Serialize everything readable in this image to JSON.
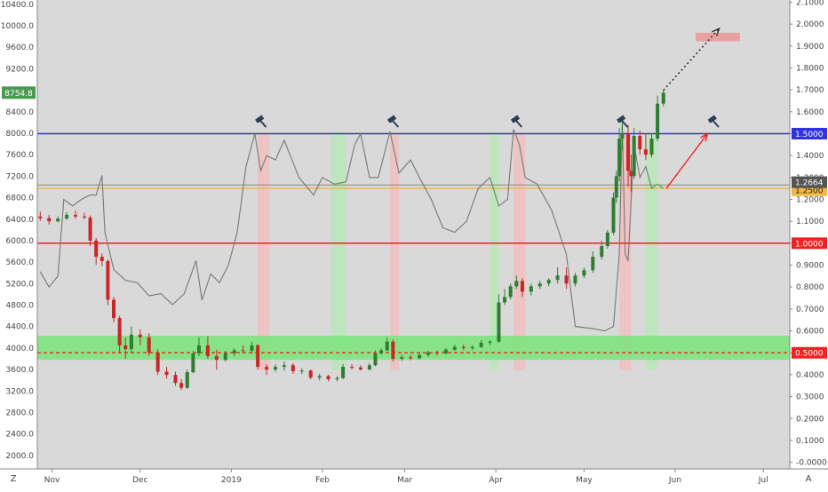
{
  "chart_data": {
    "type": "candlestick",
    "title": "",
    "xlabel": "",
    "ylabel": "",
    "price_axis_left": {
      "ticks": [
        "10400.0",
        "10000.0",
        "9600.0",
        "9200.0",
        "8800.0",
        "8400.0",
        "8000.0",
        "7600.0",
        "7200.0",
        "6800.0",
        "6400.0",
        "6000.0",
        "5600.0",
        "5200.0",
        "4800.0",
        "4400.0",
        "4000.0",
        "3600.0",
        "3200.0",
        "2800.0",
        "2400.0",
        "2000.0"
      ],
      "ylim": [
        1750,
        10480
      ]
    },
    "ratio_axis_right": {
      "ticks": [
        "2.1000",
        "2.0000",
        "1.9000",
        "1.8000",
        "1.7000",
        "1.6000",
        "1.5000",
        "1.4000",
        "1.3000",
        "1.2000",
        "1.1000",
        "1.0000",
        "0.9000",
        "0.8000",
        "0.7000",
        "0.6000",
        "0.5000",
        "0.4000",
        "0.3000",
        "0.2000",
        "0.1000",
        "-0.0000"
      ],
      "ylim": [
        -0.03,
        2.11
      ]
    },
    "x_labels": [
      "Nov",
      "Dec",
      "2019",
      "Feb",
      "Mar",
      "Apr",
      "May",
      "Jun",
      "Jul"
    ],
    "x_label_dates": [
      "2018-11-01",
      "2018-12-01",
      "2019-01-01",
      "2019-02-01",
      "2019-03-01",
      "2019-04-01",
      "2019-05-01",
      "2019-06-01",
      "2019-07-01"
    ],
    "last_price_label": "8754.8",
    "last_price_value": 8754.8,
    "horizontal_levels": [
      {
        "value": 1.5,
        "label": "1.5000",
        "color": "#3333dd"
      },
      {
        "value": 1.25,
        "label": "1.2500",
        "color": "#f0b840"
      },
      {
        "value": 1.0,
        "label": "1.0000",
        "color": "#ee2222"
      },
      {
        "value": 0.5,
        "label": "0.5000",
        "color": "#ee2222",
        "style": "dashed"
      },
      {
        "value": 1.2664,
        "label": "1.2664",
        "color": "#555555"
      }
    ],
    "support_zone": {
      "low": 3780,
      "high": 4230,
      "color": "#7ee37e"
    },
    "target_zone": {
      "from": "2019-06-08",
      "to": "2019-06-23",
      "low": 9710,
      "high": 9870,
      "color": "#e8a0a0"
    },
    "vertical_bands": [
      {
        "from": "2019-01-10",
        "to": "2019-01-14",
        "color": "#f0c0c0"
      },
      {
        "from": "2019-02-04",
        "to": "2019-02-09",
        "color": "#b8e6b8"
      },
      {
        "from": "2019-02-24",
        "to": "2019-02-27",
        "color": "#f0c0c0"
      },
      {
        "from": "2019-03-30",
        "to": "2019-04-02",
        "color": "#b8e6b8"
      },
      {
        "from": "2019-04-07",
        "to": "2019-04-11",
        "color": "#f0c0c0"
      },
      {
        "from": "2019-05-13",
        "to": "2019-05-17",
        "color": "#f0c0c0"
      },
      {
        "from": "2019-05-22",
        "to": "2019-05-26",
        "color": "#b8e6b8"
      }
    ],
    "oscillator_series": [
      {
        "date": "2018-10-28",
        "value": 0.87
      },
      {
        "date": "2018-10-31",
        "value": 0.8
      },
      {
        "date": "2018-11-03",
        "value": 0.85
      },
      {
        "date": "2018-11-05",
        "value": 1.2
      },
      {
        "date": "2018-11-08",
        "value": 1.17
      },
      {
        "date": "2018-11-11",
        "value": 1.2
      },
      {
        "date": "2018-11-14",
        "value": 1.22
      },
      {
        "date": "2018-11-16",
        "value": 1.22
      },
      {
        "date": "2018-11-18",
        "value": 1.31
      },
      {
        "date": "2018-11-19",
        "value": 1.05
      },
      {
        "date": "2018-11-22",
        "value": 0.88
      },
      {
        "date": "2018-11-26",
        "value": 0.83
      },
      {
        "date": "2018-11-30",
        "value": 0.82
      },
      {
        "date": "2018-12-04",
        "value": 0.76
      },
      {
        "date": "2018-12-08",
        "value": 0.77
      },
      {
        "date": "2018-12-12",
        "value": 0.72
      },
      {
        "date": "2018-12-16",
        "value": 0.77
      },
      {
        "date": "2018-12-20",
        "value": 0.92
      },
      {
        "date": "2018-12-22",
        "value": 0.74
      },
      {
        "date": "2018-12-25",
        "value": 0.86
      },
      {
        "date": "2018-12-28",
        "value": 0.82
      },
      {
        "date": "2018-12-31",
        "value": 0.9
      },
      {
        "date": "2019-01-03",
        "value": 1.05
      },
      {
        "date": "2019-01-06",
        "value": 1.35
      },
      {
        "date": "2019-01-09",
        "value": 1.5
      },
      {
        "date": "2019-01-11",
        "value": 1.33
      },
      {
        "date": "2019-01-13",
        "value": 1.4
      },
      {
        "date": "2019-01-16",
        "value": 1.38
      },
      {
        "date": "2019-01-19",
        "value": 1.47
      },
      {
        "date": "2019-01-24",
        "value": 1.3
      },
      {
        "date": "2019-01-29",
        "value": 1.22
      },
      {
        "date": "2019-02-01",
        "value": 1.3
      },
      {
        "date": "2019-02-05",
        "value": 1.27
      },
      {
        "date": "2019-02-09",
        "value": 1.28
      },
      {
        "date": "2019-02-12",
        "value": 1.45
      },
      {
        "date": "2019-02-14",
        "value": 1.5
      },
      {
        "date": "2019-02-17",
        "value": 1.3
      },
      {
        "date": "2019-02-20",
        "value": 1.3
      },
      {
        "date": "2019-02-24",
        "value": 1.51
      },
      {
        "date": "2019-02-27",
        "value": 1.32
      },
      {
        "date": "2019-03-03",
        "value": 1.38
      },
      {
        "date": "2019-03-06",
        "value": 1.3
      },
      {
        "date": "2019-03-10",
        "value": 1.2
      },
      {
        "date": "2019-03-14",
        "value": 1.07
      },
      {
        "date": "2019-03-18",
        "value": 1.05
      },
      {
        "date": "2019-03-22",
        "value": 1.1
      },
      {
        "date": "2019-03-26",
        "value": 1.25
      },
      {
        "date": "2019-03-30",
        "value": 1.3
      },
      {
        "date": "2019-04-02",
        "value": 1.17
      },
      {
        "date": "2019-04-05",
        "value": 1.2
      },
      {
        "date": "2019-04-07",
        "value": 1.52
      },
      {
        "date": "2019-04-09",
        "value": 1.45
      },
      {
        "date": "2019-04-11",
        "value": 1.3
      },
      {
        "date": "2019-04-15",
        "value": 1.27
      },
      {
        "date": "2019-04-20",
        "value": 1.15
      },
      {
        "date": "2019-04-25",
        "value": 0.95
      },
      {
        "date": "2019-04-28",
        "value": 0.62
      },
      {
        "date": "2019-05-04",
        "value": 0.61
      },
      {
        "date": "2019-05-08",
        "value": 0.6
      },
      {
        "date": "2019-05-11",
        "value": 0.62
      },
      {
        "date": "2019-05-13",
        "value": 0.95
      },
      {
        "date": "2019-05-14",
        "value": 1.55
      },
      {
        "date": "2019-05-15",
        "value": 0.95
      },
      {
        "date": "2019-05-16",
        "value": 0.92
      },
      {
        "date": "2019-05-18",
        "value": 1.45
      },
      {
        "date": "2019-05-20",
        "value": 1.3
      },
      {
        "date": "2019-05-22",
        "value": 1.35
      },
      {
        "date": "2019-05-24",
        "value": 1.25
      },
      {
        "date": "2019-05-26",
        "value": 1.27
      },
      {
        "date": "2019-05-28",
        "value": 1.25
      }
    ],
    "candles": [
      {
        "date": "2018-10-28",
        "open": 6450,
        "high": 6540,
        "low": 6370,
        "close": 6420
      },
      {
        "date": "2018-10-31",
        "open": 6420,
        "high": 6480,
        "low": 6300,
        "close": 6360
      },
      {
        "date": "2018-11-03",
        "open": 6360,
        "high": 6450,
        "low": 6340,
        "close": 6410
      },
      {
        "date": "2018-11-06",
        "open": 6410,
        "high": 6530,
        "low": 6390,
        "close": 6480
      },
      {
        "date": "2018-11-09",
        "open": 6480,
        "high": 6560,
        "low": 6410,
        "close": 6450
      },
      {
        "date": "2018-11-12",
        "open": 6450,
        "high": 6520,
        "low": 6400,
        "close": 6430
      },
      {
        "date": "2018-11-14",
        "open": 6430,
        "high": 6470,
        "low": 5900,
        "close": 6000
      },
      {
        "date": "2018-11-16",
        "open": 6000,
        "high": 6050,
        "low": 5550,
        "close": 5700
      },
      {
        "date": "2018-11-18",
        "open": 5700,
        "high": 5760,
        "low": 5520,
        "close": 5620
      },
      {
        "date": "2018-11-20",
        "open": 5620,
        "high": 5650,
        "low": 4800,
        "close": 4900
      },
      {
        "date": "2018-11-22",
        "open": 4900,
        "high": 4950,
        "low": 4480,
        "close": 4560
      },
      {
        "date": "2018-11-24",
        "open": 4560,
        "high": 4600,
        "low": 3900,
        "close": 4050
      },
      {
        "date": "2018-11-26",
        "open": 4050,
        "high": 4200,
        "low": 3800,
        "close": 3980
      },
      {
        "date": "2018-11-28",
        "open": 3980,
        "high": 4400,
        "low": 3900,
        "close": 4250
      },
      {
        "date": "2018-12-01",
        "open": 4250,
        "high": 4350,
        "low": 4050,
        "close": 4200
      },
      {
        "date": "2018-12-04",
        "open": 4200,
        "high": 4280,
        "low": 3850,
        "close": 3920
      },
      {
        "date": "2018-12-07",
        "open": 3920,
        "high": 3980,
        "low": 3500,
        "close": 3560
      },
      {
        "date": "2018-12-10",
        "open": 3560,
        "high": 3650,
        "low": 3430,
        "close": 3500
      },
      {
        "date": "2018-12-13",
        "open": 3500,
        "high": 3560,
        "low": 3300,
        "close": 3350
      },
      {
        "date": "2018-12-15",
        "open": 3350,
        "high": 3420,
        "low": 3220,
        "close": 3260
      },
      {
        "date": "2018-12-17",
        "open": 3260,
        "high": 3600,
        "low": 3240,
        "close": 3550
      },
      {
        "date": "2018-12-19",
        "open": 3550,
        "high": 3950,
        "low": 3530,
        "close": 3900
      },
      {
        "date": "2018-12-21",
        "open": 3900,
        "high": 4200,
        "low": 3850,
        "close": 4050
      },
      {
        "date": "2018-12-24",
        "open": 4050,
        "high": 4220,
        "low": 3800,
        "close": 3850
      },
      {
        "date": "2018-12-27",
        "open": 3850,
        "high": 3970,
        "low": 3600,
        "close": 3780
      },
      {
        "date": "2018-12-30",
        "open": 3780,
        "high": 3950,
        "low": 3750,
        "close": 3900
      },
      {
        "date": "2019-01-02",
        "open": 3900,
        "high": 4000,
        "low": 3850,
        "close": 3960
      },
      {
        "date": "2019-01-05",
        "open": 3960,
        "high": 4050,
        "low": 3900,
        "close": 3950
      },
      {
        "date": "2019-01-08",
        "open": 3950,
        "high": 4120,
        "low": 3920,
        "close": 4050
      },
      {
        "date": "2019-01-10",
        "open": 4050,
        "high": 4080,
        "low": 3600,
        "close": 3650
      },
      {
        "date": "2019-01-13",
        "open": 3650,
        "high": 3700,
        "low": 3500,
        "close": 3600
      },
      {
        "date": "2019-01-16",
        "open": 3600,
        "high": 3700,
        "low": 3560,
        "close": 3650
      },
      {
        "date": "2019-01-19",
        "open": 3650,
        "high": 3750,
        "low": 3580,
        "close": 3680
      },
      {
        "date": "2019-01-22",
        "open": 3680,
        "high": 3720,
        "low": 3520,
        "close": 3570
      },
      {
        "date": "2019-01-25",
        "open": 3570,
        "high": 3620,
        "low": 3520,
        "close": 3580
      },
      {
        "date": "2019-01-28",
        "open": 3580,
        "high": 3600,
        "low": 3420,
        "close": 3450
      },
      {
        "date": "2019-01-31",
        "open": 3450,
        "high": 3520,
        "low": 3400,
        "close": 3480
      },
      {
        "date": "2019-02-03",
        "open": 3480,
        "high": 3500,
        "low": 3380,
        "close": 3420
      },
      {
        "date": "2019-02-06",
        "open": 3420,
        "high": 3480,
        "low": 3380,
        "close": 3440
      },
      {
        "date": "2019-02-08",
        "open": 3440,
        "high": 3700,
        "low": 3420,
        "close": 3650
      },
      {
        "date": "2019-02-11",
        "open": 3650,
        "high": 3700,
        "low": 3600,
        "close": 3640
      },
      {
        "date": "2019-02-14",
        "open": 3640,
        "high": 3680,
        "low": 3580,
        "close": 3600
      },
      {
        "date": "2019-02-17",
        "open": 3600,
        "high": 3720,
        "low": 3590,
        "close": 3680
      },
      {
        "date": "2019-02-19",
        "open": 3680,
        "high": 3960,
        "low": 3660,
        "close": 3900
      },
      {
        "date": "2019-02-21",
        "open": 3900,
        "high": 4000,
        "low": 3880,
        "close": 3960
      },
      {
        "date": "2019-02-23",
        "open": 3960,
        "high": 4200,
        "low": 3940,
        "close": 4120
      },
      {
        "date": "2019-02-25",
        "open": 4120,
        "high": 4160,
        "low": 3750,
        "close": 3800
      },
      {
        "date": "2019-02-28",
        "open": 3800,
        "high": 3880,
        "low": 3760,
        "close": 3830
      },
      {
        "date": "2019-03-03",
        "open": 3830,
        "high": 3870,
        "low": 3770,
        "close": 3810
      },
      {
        "date": "2019-03-06",
        "open": 3810,
        "high": 3900,
        "low": 3790,
        "close": 3870
      },
      {
        "date": "2019-03-09",
        "open": 3870,
        "high": 3950,
        "low": 3840,
        "close": 3920
      },
      {
        "date": "2019-03-12",
        "open": 3920,
        "high": 3960,
        "low": 3860,
        "close": 3900
      },
      {
        "date": "2019-03-15",
        "open": 3900,
        "high": 4000,
        "low": 3880,
        "close": 3970
      },
      {
        "date": "2019-03-18",
        "open": 3970,
        "high": 4060,
        "low": 3950,
        "close": 4020
      },
      {
        "date": "2019-03-21",
        "open": 4020,
        "high": 4070,
        "low": 3960,
        "close": 4000
      },
      {
        "date": "2019-03-24",
        "open": 4000,
        "high": 4050,
        "low": 3960,
        "close": 4020
      },
      {
        "date": "2019-03-27",
        "open": 4020,
        "high": 4150,
        "low": 4000,
        "close": 4100
      },
      {
        "date": "2019-03-30",
        "open": 4100,
        "high": 4150,
        "low": 4050,
        "close": 4120
      },
      {
        "date": "2019-04-02",
        "open": 4120,
        "high": 5000,
        "low": 4100,
        "close": 4850
      },
      {
        "date": "2019-04-04",
        "open": 4850,
        "high": 5100,
        "low": 4800,
        "close": 4950
      },
      {
        "date": "2019-04-06",
        "open": 4950,
        "high": 5200,
        "low": 4900,
        "close": 5150
      },
      {
        "date": "2019-04-08",
        "open": 5150,
        "high": 5350,
        "low": 5100,
        "close": 5250
      },
      {
        "date": "2019-04-10",
        "open": 5250,
        "high": 5300,
        "low": 4950,
        "close": 5050
      },
      {
        "date": "2019-04-13",
        "open": 5050,
        "high": 5200,
        "low": 4980,
        "close": 5150
      },
      {
        "date": "2019-04-16",
        "open": 5150,
        "high": 5250,
        "low": 5100,
        "close": 5200
      },
      {
        "date": "2019-04-19",
        "open": 5200,
        "high": 5300,
        "low": 5150,
        "close": 5270
      },
      {
        "date": "2019-04-22",
        "open": 5270,
        "high": 5500,
        "low": 5200,
        "close": 5350
      },
      {
        "date": "2019-04-25",
        "open": 5350,
        "high": 5500,
        "low": 5100,
        "close": 5200
      },
      {
        "date": "2019-04-28",
        "open": 5200,
        "high": 5400,
        "low": 5150,
        "close": 5350
      },
      {
        "date": "2019-05-01",
        "open": 5350,
        "high": 5500,
        "low": 5300,
        "close": 5450
      },
      {
        "date": "2019-05-04",
        "open": 5450,
        "high": 5800,
        "low": 5400,
        "close": 5700
      },
      {
        "date": "2019-05-07",
        "open": 5700,
        "high": 6000,
        "low": 5650,
        "close": 5900
      },
      {
        "date": "2019-05-09",
        "open": 5900,
        "high": 6200,
        "low": 5850,
        "close": 6150
      },
      {
        "date": "2019-05-11",
        "open": 6150,
        "high": 6900,
        "low": 6100,
        "close": 6800
      },
      {
        "date": "2019-05-12",
        "open": 6800,
        "high": 7300,
        "low": 6700,
        "close": 7200
      },
      {
        "date": "2019-05-13",
        "open": 7200,
        "high": 8100,
        "low": 7100,
        "close": 7900
      },
      {
        "date": "2019-05-14",
        "open": 7900,
        "high": 8300,
        "low": 7700,
        "close": 8000
      },
      {
        "date": "2019-05-16",
        "open": 8000,
        "high": 8150,
        "low": 7000,
        "close": 7300
      },
      {
        "date": "2019-05-17",
        "open": 7300,
        "high": 7600,
        "low": 6900,
        "close": 7200
      },
      {
        "date": "2019-05-18",
        "open": 7200,
        "high": 8100,
        "low": 7150,
        "close": 7950
      },
      {
        "date": "2019-05-20",
        "open": 7950,
        "high": 8050,
        "low": 7600,
        "close": 7700
      },
      {
        "date": "2019-05-22",
        "open": 7700,
        "high": 8000,
        "low": 7500,
        "close": 7600
      },
      {
        "date": "2019-05-24",
        "open": 7600,
        "high": 8000,
        "low": 7550,
        "close": 7900
      },
      {
        "date": "2019-05-26",
        "open": 7900,
        "high": 8700,
        "low": 7850,
        "close": 8550
      },
      {
        "date": "2019-05-28",
        "open": 8550,
        "high": 8800,
        "low": 8500,
        "close": 8754.8
      }
    ],
    "hammer_markers": [
      "2019-01-11",
      "2019-02-25",
      "2019-04-08",
      "2019-05-14",
      "2019-06-14"
    ],
    "arrows": [
      {
        "from_date": "2019-05-28",
        "from_value": 8800,
        "to_date": "2019-06-16",
        "to_value": 9950,
        "color": "#333333",
        "style": "dotted"
      },
      {
        "from_date": "2019-05-29",
        "from_value": 1.25,
        "to_date": "2019-06-12",
        "to_value": 1.5,
        "color": "#ee2222",
        "style": "solid"
      }
    ],
    "corner_labels": {
      "bottom_left": "Z",
      "bottom_right": "A"
    },
    "grid": false,
    "legend": "none"
  }
}
